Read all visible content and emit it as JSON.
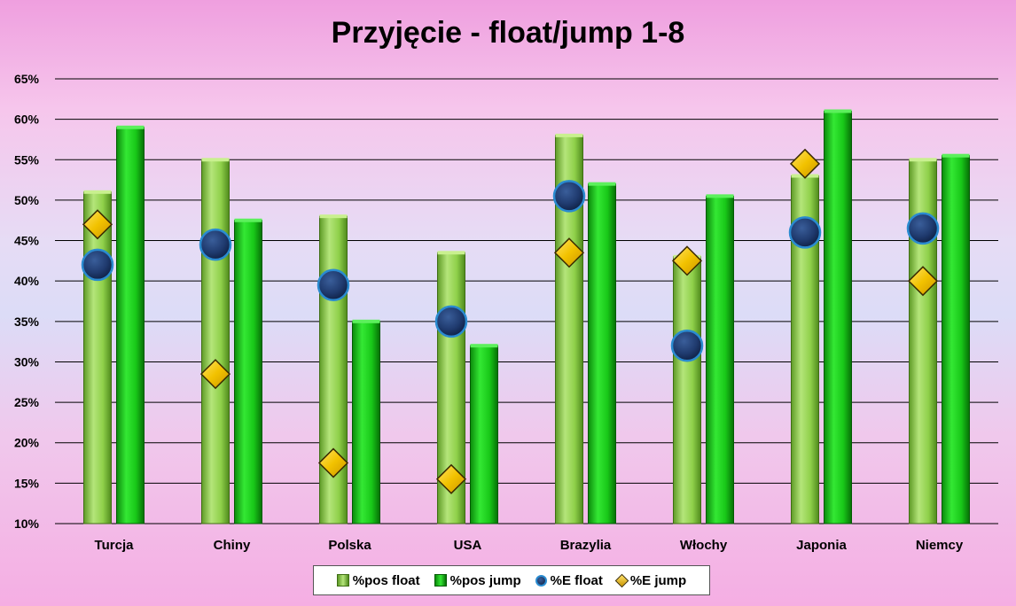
{
  "chart_data": {
    "type": "bar",
    "title": "Przyjęcie - float/jump 1-8",
    "xlabel": "",
    "ylabel": "",
    "categories": [
      "Turcja",
      "Chiny",
      "Polska",
      "USA",
      "Brazylia",
      "Włochy",
      "Japonia",
      "Niemcy"
    ],
    "ylim": [
      0.1,
      0.65
    ],
    "yticks": [
      "10%",
      "15%",
      "20%",
      "25%",
      "30%",
      "35%",
      "40%",
      "45%",
      "50%",
      "55%",
      "60%",
      "65%"
    ],
    "series": [
      {
        "name": "%pos float",
        "kind": "bar",
        "color": "#8fd04a",
        "values": [
          0.51,
          0.55,
          0.48,
          0.435,
          0.58,
          0.43,
          0.53,
          0.55
        ]
      },
      {
        "name": "%pos jump",
        "kind": "bar",
        "color": "#18c818",
        "values": [
          0.59,
          0.475,
          0.35,
          0.32,
          0.52,
          0.505,
          0.61,
          0.555
        ]
      },
      {
        "name": "%E float",
        "kind": "marker-circle",
        "color": "#1f3a6e",
        "values": [
          0.42,
          0.445,
          0.395,
          0.35,
          0.505,
          0.32,
          0.46,
          0.465
        ]
      },
      {
        "name": "%E jump",
        "kind": "marker-diamond",
        "color": "#f2c200",
        "values": [
          0.47,
          0.285,
          0.175,
          0.155,
          0.435,
          0.425,
          0.545,
          0.4
        ]
      }
    ],
    "grid": true,
    "legend_position": "bottom"
  }
}
